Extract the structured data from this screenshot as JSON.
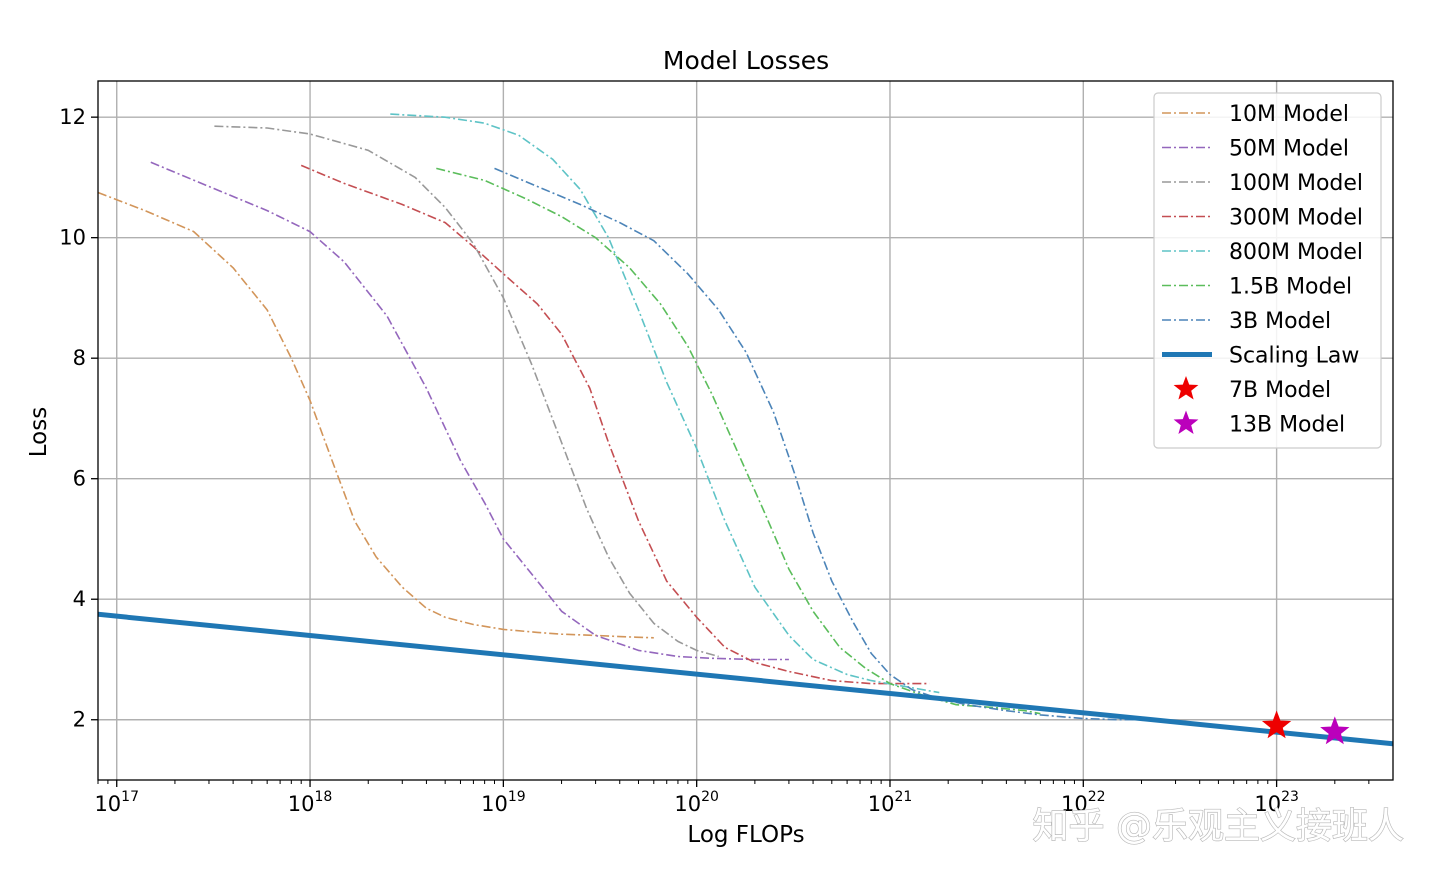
{
  "chart_data": {
    "type": "line",
    "title": "Model Losses",
    "xlabel": "Log FLOPs",
    "ylabel": "Loss",
    "x_scale": "log",
    "xlim": [
      8e+16,
      4e+23
    ],
    "ylim": [
      1.0,
      12.6
    ],
    "grid": true,
    "legend_position": "top-right",
    "x_ticks": [
      {
        "base": "10",
        "exp": "17",
        "value": 1e+17
      },
      {
        "base": "10",
        "exp": "18",
        "value": 1e+18
      },
      {
        "base": "10",
        "exp": "19",
        "value": 1e+19
      },
      {
        "base": "10",
        "exp": "20",
        "value": 1e+20
      },
      {
        "base": "10",
        "exp": "21",
        "value": 1e+21
      },
      {
        "base": "10",
        "exp": "22",
        "value": 1e+22
      },
      {
        "base": "10",
        "exp": "23",
        "value": 1e+23
      }
    ],
    "y_ticks": [
      2,
      4,
      6,
      8,
      10,
      12
    ],
    "series": [
      {
        "name": "10M Model",
        "color": "#d2955a",
        "style": "dash-dot",
        "x": [
          8e+16,
          1.4e+17,
          2.5e+17,
          4e+17,
          6e+17,
          8e+17,
          1e+18,
          1.3e+18,
          1.7e+18,
          2.2e+18,
          3e+18,
          4e+18,
          5e+18,
          7e+18,
          1e+19,
          1.5e+19,
          2e+19,
          3e+19,
          4e+19,
          6e+19
        ],
        "y": [
          10.75,
          10.45,
          10.1,
          9.5,
          8.8,
          8.0,
          7.3,
          6.3,
          5.3,
          4.7,
          4.2,
          3.85,
          3.7,
          3.58,
          3.5,
          3.45,
          3.42,
          3.4,
          3.38,
          3.36
        ]
      },
      {
        "name": "50M Model",
        "color": "#9467bd",
        "style": "dash-dot",
        "x": [
          1.5e+17,
          3e+17,
          6e+17,
          1e+18,
          1.5e+18,
          2.5e+18,
          4e+18,
          6e+18,
          8e+18,
          1e+19,
          1.5e+19,
          2e+19,
          3e+19,
          5e+19,
          8e+19,
          1.2e+20,
          2e+20,
          3e+20
        ],
        "y": [
          11.25,
          10.85,
          10.45,
          10.1,
          9.6,
          8.7,
          7.5,
          6.3,
          5.6,
          5.0,
          4.3,
          3.8,
          3.4,
          3.15,
          3.05,
          3.02,
          3.0,
          3.0
        ]
      },
      {
        "name": "100M Model",
        "color": "#999999",
        "style": "dash-dot",
        "x": [
          3.2e+17,
          6e+17,
          1e+18,
          2e+18,
          3.5e+18,
          5e+18,
          7e+18,
          1e+19,
          1.4e+19,
          2e+19,
          2.7e+19,
          3.5e+19,
          4.5e+19,
          6e+19,
          8e+19,
          1e+20,
          1.3e+20
        ],
        "y": [
          11.85,
          11.82,
          11.72,
          11.45,
          11.0,
          10.5,
          9.9,
          9.0,
          7.9,
          6.6,
          5.5,
          4.7,
          4.1,
          3.6,
          3.3,
          3.15,
          3.05
        ]
      },
      {
        "name": "300M Model",
        "color": "#c44e52",
        "style": "dash-dot",
        "x": [
          9e+17,
          1.5e+18,
          3e+18,
          5e+18,
          7e+18,
          1e+19,
          1.5e+19,
          2e+19,
          2.8e+19,
          3.5e+19,
          5e+19,
          7e+19,
          1e+20,
          1.4e+20,
          2e+20,
          3e+20,
          5e+20,
          8e+20,
          1.2e+21,
          1.6e+21
        ],
        "y": [
          11.2,
          10.9,
          10.55,
          10.25,
          9.85,
          9.4,
          8.9,
          8.4,
          7.5,
          6.6,
          5.3,
          4.3,
          3.7,
          3.2,
          2.95,
          2.8,
          2.65,
          2.6,
          2.6,
          2.6
        ]
      },
      {
        "name": "800M Model",
        "color": "#5ec3c6",
        "style": "dash-dot",
        "x": [
          2.6e+18,
          5e+18,
          8e+18,
          1.2e+19,
          1.8e+19,
          2.5e+19,
          3.5e+19,
          5e+19,
          7e+19,
          1e+20,
          1.4e+20,
          2e+20,
          3e+20,
          4e+20,
          6e+20,
          8e+20,
          1.2e+21,
          1.8e+21
        ],
        "y": [
          12.05,
          12.0,
          11.9,
          11.7,
          11.3,
          10.8,
          10.0,
          8.8,
          7.6,
          6.5,
          5.3,
          4.2,
          3.4,
          3.0,
          2.75,
          2.65,
          2.55,
          2.45
        ]
      },
      {
        "name": "1.5B Model",
        "color": "#5bbd5b",
        "style": "dash-dot",
        "x": [
          4.5e+18,
          8e+18,
          1.3e+19,
          2e+19,
          3e+19,
          4.5e+19,
          6.5e+19,
          9e+19,
          1.2e+20,
          1.6e+20,
          2.2e+20,
          3e+20,
          4e+20,
          5.5e+20,
          7.5e+20,
          1e+21,
          1.5e+21,
          2.2e+21,
          3.5e+21,
          5e+21,
          6e+21
        ],
        "y": [
          11.15,
          10.95,
          10.65,
          10.35,
          10.0,
          9.5,
          8.9,
          8.2,
          7.4,
          6.5,
          5.5,
          4.5,
          3.8,
          3.2,
          2.85,
          2.6,
          2.4,
          2.25,
          2.2,
          2.15,
          2.1
        ]
      },
      {
        "name": "3B Model",
        "color": "#4c84b8",
        "style": "dash-dot",
        "x": [
          9e+18,
          1.5e+19,
          2.5e+19,
          4e+19,
          6e+19,
          9e+19,
          1.3e+20,
          1.8e+20,
          2.5e+20,
          3.2e+20,
          4e+20,
          5e+20,
          6.5e+20,
          8e+20,
          1e+21,
          1.3e+21,
          1.8e+21,
          2.5e+21,
          4e+21,
          6e+21,
          1e+22,
          1.5e+22,
          2e+22
        ],
        "y": [
          11.15,
          10.85,
          10.55,
          10.25,
          9.95,
          9.4,
          8.8,
          8.1,
          7.1,
          6.1,
          5.1,
          4.3,
          3.6,
          3.1,
          2.75,
          2.5,
          2.35,
          2.25,
          2.15,
          2.08,
          2.02,
          2.0,
          2.0
        ]
      },
      {
        "name": "Scaling Law",
        "color": "#1f77b4",
        "style": "solid",
        "x": [
          8e+16,
          4e+23
        ],
        "y": [
          3.75,
          1.6
        ]
      }
    ],
    "markers": [
      {
        "name": "7B Model",
        "color": "#ee0000",
        "symbol": "star",
        "x": 1e+23,
        "y": 1.9
      },
      {
        "name": "13B Model",
        "color": "#bb00bb",
        "symbol": "star",
        "x": 2e+23,
        "y": 1.8
      }
    ]
  },
  "watermark": "知乎 @乐观主义接班人"
}
